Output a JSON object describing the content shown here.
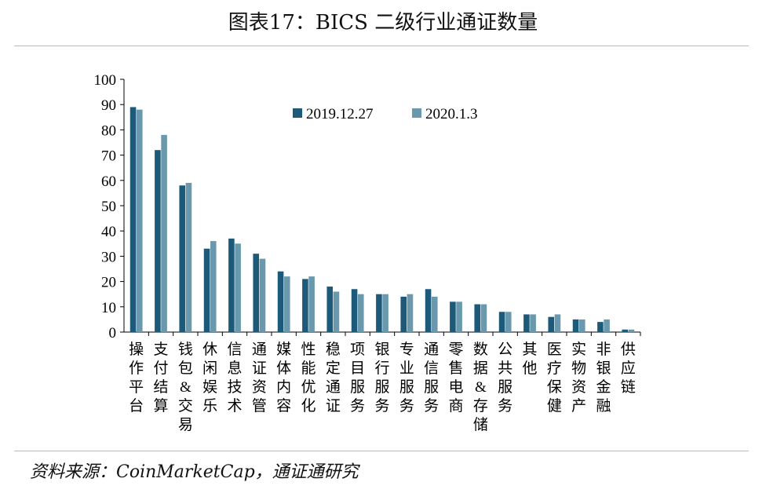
{
  "title": "图表17：BICS 二级行业通证数量",
  "source": "资料来源：CoinMarketCap，通证通研究",
  "chart_data": {
    "type": "bar",
    "categories": [
      "操作平台",
      "支付结算",
      "钱包&交易",
      "休闲娱乐",
      "信息技术",
      "通证资管",
      "媒体内容",
      "性能优化",
      "稳定通证",
      "项目服务",
      "银行服务",
      "专业服务",
      "通信服务",
      "零售电商",
      "数据&存储",
      "公共服务",
      "其他",
      "医疗保健",
      "实物资产",
      "非银金融",
      "供应链"
    ],
    "series": [
      {
        "name": "2019.12.27",
        "color": "#1d5a7a",
        "values": [
          89,
          72,
          58,
          33,
          37,
          31,
          24,
          21,
          18,
          17,
          15,
          14,
          17,
          12,
          11,
          8,
          7,
          6,
          5,
          4,
          1
        ]
      },
      {
        "name": "2020.1.3",
        "color": "#6a99ad",
        "values": [
          88,
          78,
          59,
          36,
          35,
          29,
          22,
          22,
          16,
          15,
          15,
          15,
          14,
          12,
          11,
          8,
          7,
          7,
          5,
          5,
          1
        ]
      }
    ],
    "ylim": [
      0,
      100
    ],
    "yticks": [
      0,
      10,
      20,
      30,
      40,
      50,
      60,
      70,
      80,
      90,
      100
    ],
    "legend_position": "top-center",
    "grid": false
  }
}
